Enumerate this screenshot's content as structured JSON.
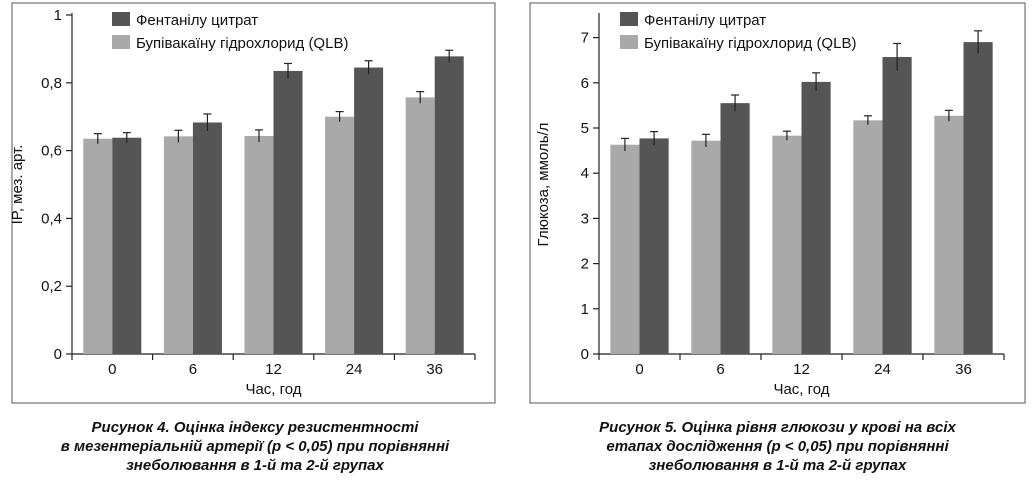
{
  "colors": {
    "dark": "#555555",
    "light": "#a9a9a9",
    "axis": "#222222",
    "frame": "#555555"
  },
  "figures": [
    {
      "caption": {
        "line1": "Рисунок 4.  Оцінка індексу резистентності",
        "line2": "в мезентеріальній артерії (p < 0,05) при порівнянні",
        "line3": "знеболювання в 1-й та 2-й групах"
      }
    },
    {
      "caption": {
        "line1": "Рисунок 5.  Оцінка рівня глюкози у крові на всіх",
        "line2": "етапах дослідження (p < 0,05) при порівнянні",
        "line3": "знеболювання в 1-й та 2-й групах"
      }
    }
  ],
  "chart_data": [
    {
      "type": "bar",
      "title": "",
      "xlabel": "Час, год",
      "ylabel": "IP, мез. арт.",
      "categories": [
        "0",
        "6",
        "12",
        "24",
        "36"
      ],
      "ylim": [
        0,
        1
      ],
      "yticks": [
        0,
        0.2,
        0.4,
        0.6,
        0.8,
        1
      ],
      "ytick_labels": [
        "0",
        "0,2",
        "0,4",
        "0,6",
        "0,8",
        "1"
      ],
      "grid": false,
      "legend": "top-left",
      "series": [
        {
          "name": "Бупівакаїну гідрохлорид (QLB)",
          "color": "light",
          "values": [
            0.635,
            0.642,
            0.643,
            0.7,
            0.757
          ],
          "errors": [
            0.015,
            0.018,
            0.018,
            0.015,
            0.017
          ]
        },
        {
          "name": "Фентанілу цитрат",
          "color": "dark",
          "values": [
            0.638,
            0.683,
            0.835,
            0.845,
            0.878
          ],
          "errors": [
            0.015,
            0.025,
            0.022,
            0.02,
            0.018
          ]
        }
      ]
    },
    {
      "type": "bar",
      "title": "",
      "xlabel": "Час, год",
      "ylabel": "Глюкоза, ммоль/л",
      "categories": [
        "0",
        "6",
        "12",
        "24",
        "36"
      ],
      "ylim": [
        0,
        7.5
      ],
      "yticks": [
        0,
        1,
        2,
        3,
        4,
        5,
        6,
        7
      ],
      "ytick_labels": [
        "0",
        "1",
        "2",
        "3",
        "4",
        "5",
        "6",
        "7"
      ],
      "grid": false,
      "legend": "top-left",
      "series": [
        {
          "name": "Бупівакаїну гідрохлорид (QLB)",
          "color": "light",
          "values": [
            4.63,
            4.72,
            4.83,
            5.17,
            5.27
          ],
          "errors": [
            0.14,
            0.14,
            0.1,
            0.1,
            0.12
          ]
        },
        {
          "name": "Фентанілу цитрат",
          "color": "dark",
          "values": [
            4.77,
            5.55,
            6.02,
            6.57,
            6.9
          ],
          "errors": [
            0.15,
            0.18,
            0.2,
            0.3,
            0.25
          ]
        }
      ]
    }
  ]
}
